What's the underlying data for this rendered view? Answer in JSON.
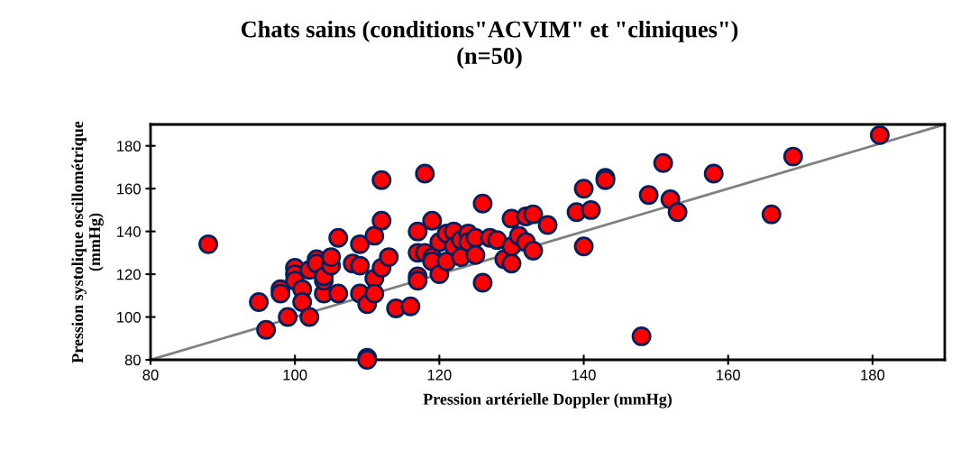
{
  "chart_data": {
    "type": "scatter",
    "title": "Chats sains (conditions\"ACVIM\" et \"cliniques\")\n(n=50)",
    "xlabel": "Pression artérielle Doppler (mmHg)",
    "ylabel": "Pression systolique oscillométrique\n(mmHg)",
    "xlim": [
      80,
      190
    ],
    "xticks": [
      80,
      100,
      120,
      140,
      160,
      180
    ],
    "ylim": [
      80,
      190
    ],
    "yticks": [
      80,
      100,
      120,
      140,
      160,
      180
    ],
    "grid": false,
    "legend": false,
    "series": [
      {
        "type": "line",
        "marker": "none",
        "color": "#808080",
        "x": [
          80,
          190
        ],
        "values": [
          80,
          190
        ]
      },
      {
        "marker": "circle",
        "color": "#ff0000",
        "x": [
          88,
          95,
          96,
          98,
          98,
          99,
          100,
          100,
          100,
          101,
          101,
          102,
          102,
          103,
          103,
          104,
          104,
          104,
          105,
          105,
          106,
          106,
          108,
          109,
          109,
          109,
          110,
          110,
          110,
          111,
          111,
          111,
          112,
          112,
          112,
          113,
          114,
          116,
          117,
          117,
          117,
          117,
          118,
          118,
          119,
          119,
          119,
          120,
          120,
          121,
          121,
          122,
          122,
          123,
          123,
          124,
          124,
          125,
          125,
          126,
          126,
          127,
          128,
          129,
          130,
          130,
          130,
          131,
          132,
          132,
          133,
          133,
          135,
          139,
          140,
          140,
          141,
          143,
          143,
          148,
          149,
          151,
          152,
          153,
          158,
          166,
          169,
          181
        ],
        "values": [
          134,
          107,
          94,
          113,
          111,
          100,
          123,
          120,
          117,
          113,
          107,
          100,
          122,
          127,
          125,
          111,
          117,
          119,
          124,
          128,
          137,
          111,
          125,
          134,
          124,
          111,
          106,
          81,
          80,
          138,
          118,
          111,
          164,
          145,
          123,
          128,
          104,
          105,
          140,
          130,
          119,
          117,
          167,
          130,
          145,
          128,
          126,
          135,
          120,
          139,
          126,
          140,
          133,
          128,
          136,
          139,
          135,
          137,
          129,
          153,
          116,
          137,
          136,
          127,
          146,
          133,
          125,
          138,
          147,
          135,
          148,
          131,
          143,
          149,
          160,
          133,
          150,
          165,
          164,
          91,
          157,
          172,
          155,
          149,
          167,
          148,
          175,
          185
        ]
      }
    ]
  }
}
